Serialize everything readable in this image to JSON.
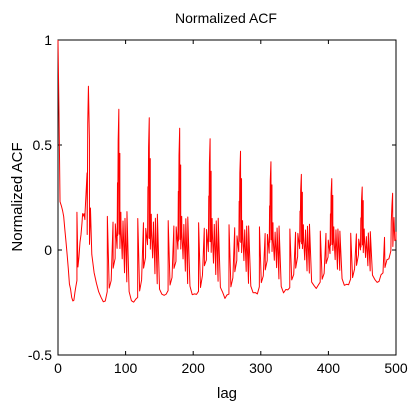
{
  "chart_data": {
    "type": "line",
    "title": "Normalized ACF",
    "xlabel": "lag",
    "ylabel": "Normalized ACF",
    "xlim": [
      0,
      500
    ],
    "ylim": [
      -0.5,
      1
    ],
    "xticks": [
      0,
      100,
      200,
      300,
      400,
      500
    ],
    "xtick_labels": [
      "0",
      "100",
      "200",
      "300",
      "400",
      "500"
    ],
    "yticks": [
      -0.5,
      0,
      0.5,
      1
    ],
    "ytick_labels": [
      "-0.5",
      "0",
      "0.5",
      "1"
    ],
    "grid": false,
    "line_color": "#ff0000",
    "peaks": [
      {
        "lag": 0,
        "value": 1.0
      },
      {
        "lag": 45,
        "value": 0.78
      },
      {
        "lag": 90,
        "value": 0.67
      },
      {
        "lag": 135,
        "value": 0.63
      },
      {
        "lag": 180,
        "value": 0.58
      },
      {
        "lag": 225,
        "value": 0.53
      },
      {
        "lag": 270,
        "value": 0.47
      },
      {
        "lag": 315,
        "value": 0.42
      },
      {
        "lag": 360,
        "value": 0.36
      },
      {
        "lag": 405,
        "value": 0.34
      },
      {
        "lag": 450,
        "value": 0.3
      },
      {
        "lag": 495,
        "value": 0.27
      }
    ],
    "troughs": [
      {
        "lag": 22,
        "value": -0.24
      },
      {
        "lag": 67,
        "value": -0.24
      },
      {
        "lag": 112,
        "value": -0.24
      },
      {
        "lag": 157,
        "value": -0.23
      },
      {
        "lag": 202,
        "value": -0.22
      },
      {
        "lag": 247,
        "value": -0.22
      },
      {
        "lag": 292,
        "value": -0.21
      },
      {
        "lag": 337,
        "value": -0.2
      },
      {
        "lag": 382,
        "value": -0.18
      },
      {
        "lag": 427,
        "value": -0.16
      },
      {
        "lag": 472,
        "value": -0.14
      }
    ],
    "shoulders": [
      {
        "lag": 5,
        "value": 0.2
      },
      {
        "lag": 33,
        "value": 0.17
      },
      {
        "lag": 78,
        "value": 0.15
      },
      {
        "lag": 123,
        "value": 0.14
      },
      {
        "lag": 168,
        "value": 0.13
      },
      {
        "lag": 213,
        "value": 0.12
      },
      {
        "lag": 258,
        "value": 0.11
      },
      {
        "lag": 303,
        "value": 0.1
      },
      {
        "lag": 348,
        "value": 0.09
      },
      {
        "lag": 393,
        "value": 0.08
      },
      {
        "lag": 438,
        "value": 0.07
      },
      {
        "lag": 483,
        "value": 0.06
      }
    ],
    "end": {
      "lag": 500,
      "value": 0.05
    }
  }
}
